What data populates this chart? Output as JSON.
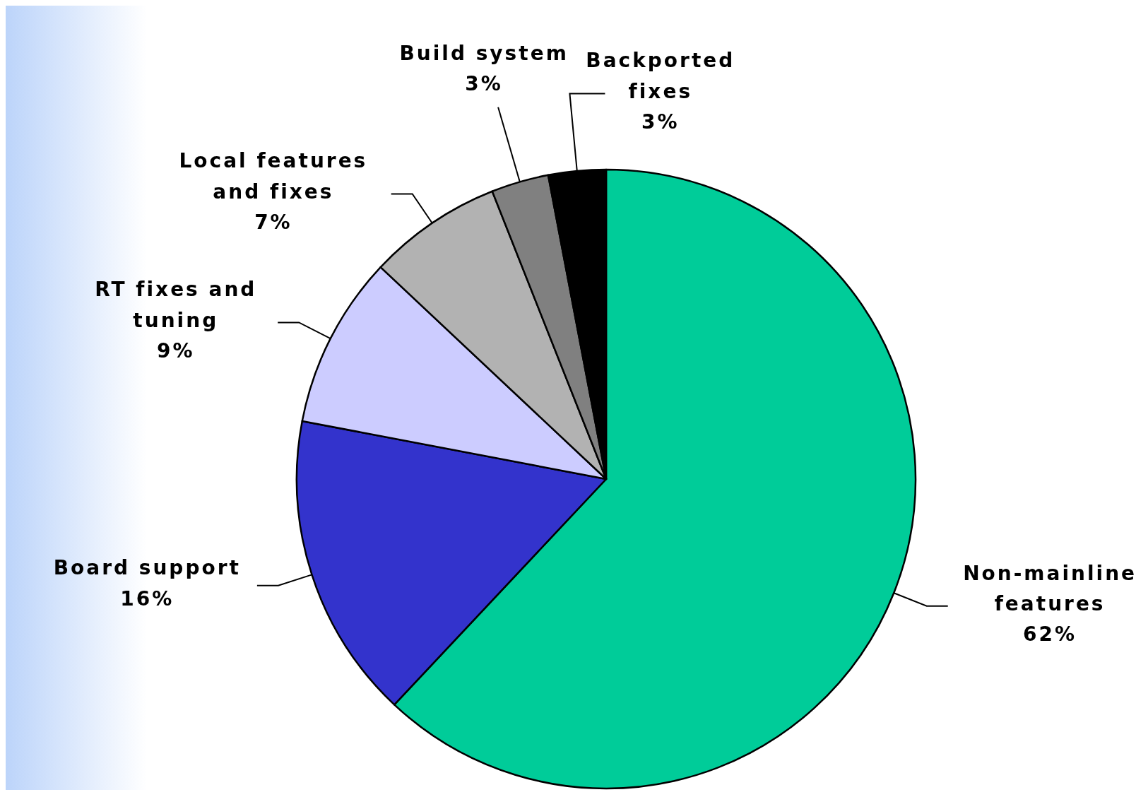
{
  "chart_data": {
    "type": "pie",
    "categories": [
      "Non-mainline features",
      "Board support",
      "RT fixes and tuning",
      "Local features and fixes",
      "Build system",
      "Backported fixes"
    ],
    "values": [
      62,
      16,
      9,
      7,
      3,
      3
    ],
    "value_labels": [
      "62%",
      "16%",
      "9%",
      "7%",
      "3%",
      "3%"
    ],
    "colors": [
      "#00cc99",
      "#3333cc",
      "#ccccff",
      "#b2b2b2",
      "#808080",
      "#000000"
    ],
    "legend": false
  }
}
